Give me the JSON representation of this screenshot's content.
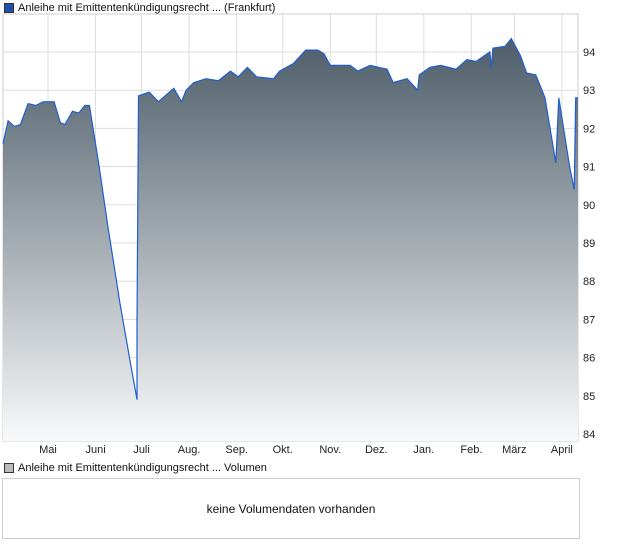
{
  "legend": {
    "price_label": "Anleihe mit Emittentenkündigungsrecht ... (Frankfurt)",
    "price_color": "#1f4fb0",
    "volume_label": "Anleihe mit Emittentenkündigungsrecht ... Volumen",
    "volume_color": "#bbbbbb"
  },
  "volume": {
    "message": "keine Volumendaten vorhanden"
  },
  "chart_data": {
    "type": "area",
    "title": "",
    "xlabel": "",
    "ylabel": "",
    "ylim": [
      84,
      94.4
    ],
    "yticks": [
      84,
      85,
      86,
      87,
      88,
      89,
      90,
      91,
      92,
      93,
      94
    ],
    "xticks": [
      {
        "label": "Mai",
        "date": "05-01"
      },
      {
        "label": "Juni",
        "date": "06-01"
      },
      {
        "label": "Juli",
        "date": "07-01"
      },
      {
        "label": "Aug.",
        "date": "08-01"
      },
      {
        "label": "Sep.",
        "date": "09-01"
      },
      {
        "label": "Okt.",
        "date": "10-01"
      },
      {
        "label": "Nov.",
        "date": "11-01"
      },
      {
        "label": "Dez.",
        "date": "12-01"
      },
      {
        "label": "Jan.",
        "date": "01-01"
      },
      {
        "label": "Feb.",
        "date": "02-01"
      },
      {
        "label": "März",
        "date": "03-01"
      },
      {
        "label": "April",
        "date": "04-01"
      }
    ],
    "grid": true,
    "line_color": "#1f5fd0",
    "fill_top": "#4d5d69",
    "fill_bottom": "#f8f9fa",
    "series": [
      {
        "points": [
          [
            "04-01",
            91.6
          ],
          [
            "04-05",
            92.2
          ],
          [
            "04-09",
            92.05
          ],
          [
            "04-13",
            92.1
          ],
          [
            "04-18",
            92.65
          ],
          [
            "04-23",
            92.6
          ],
          [
            "04-28",
            92.7
          ],
          [
            "05-05",
            92.7
          ],
          [
            "05-09",
            92.15
          ],
          [
            "05-12",
            92.1
          ],
          [
            "05-17",
            92.45
          ],
          [
            "05-21",
            92.4
          ],
          [
            "05-25",
            92.6
          ],
          [
            "05-28",
            92.6
          ],
          [
            "06-03",
            91.1
          ],
          [
            "06-09",
            89.45
          ],
          [
            "06-17",
            87.4
          ],
          [
            "06-24",
            85.8
          ],
          [
            "06-28",
            84.9
          ],
          [
            "06-28",
            86.9
          ],
          [
            "06-29",
            92.85
          ],
          [
            "07-06",
            92.95
          ],
          [
            "07-12",
            92.7
          ],
          [
            "07-22",
            93.05
          ],
          [
            "07-27",
            92.7
          ],
          [
            "07-30",
            93.0
          ],
          [
            "08-04",
            93.2
          ],
          [
            "08-12",
            93.3
          ],
          [
            "08-20",
            93.25
          ],
          [
            "08-28",
            93.5
          ],
          [
            "09-02",
            93.35
          ],
          [
            "09-08",
            93.6
          ],
          [
            "09-14",
            93.35
          ],
          [
            "09-25",
            93.3
          ],
          [
            "09-29",
            93.5
          ],
          [
            "10-08",
            93.7
          ],
          [
            "10-16",
            94.05
          ],
          [
            "10-24",
            94.05
          ],
          [
            "10-28",
            93.95
          ],
          [
            "11-01",
            93.65
          ],
          [
            "11-14",
            93.65
          ],
          [
            "11-19",
            93.5
          ],
          [
            "11-27",
            93.65
          ],
          [
            "12-08",
            93.55
          ],
          [
            "12-12",
            93.2
          ],
          [
            "12-21",
            93.3
          ],
          [
            "12-28",
            93.0
          ],
          [
            "12-29",
            93.4
          ],
          [
            "01-05",
            93.6
          ],
          [
            "01-12",
            93.65
          ],
          [
            "01-22",
            93.55
          ],
          [
            "01-29",
            93.8
          ],
          [
            "02-04",
            93.75
          ],
          [
            "02-13",
            94.0
          ],
          [
            "02-14",
            93.6
          ],
          [
            "02-15",
            94.1
          ],
          [
            "02-23",
            94.15
          ],
          [
            "02-27",
            94.35
          ],
          [
            "03-05",
            93.9
          ],
          [
            "03-09",
            93.45
          ],
          [
            "03-15",
            93.4
          ],
          [
            "03-21",
            92.8
          ],
          [
            "03-28",
            91.1
          ],
          [
            "03-30",
            92.8
          ],
          [
            "04-06",
            91.0
          ],
          [
            "04-09",
            90.4
          ],
          [
            "04-10",
            92.8
          ],
          [
            "04-12",
            92.8
          ]
        ]
      }
    ]
  }
}
